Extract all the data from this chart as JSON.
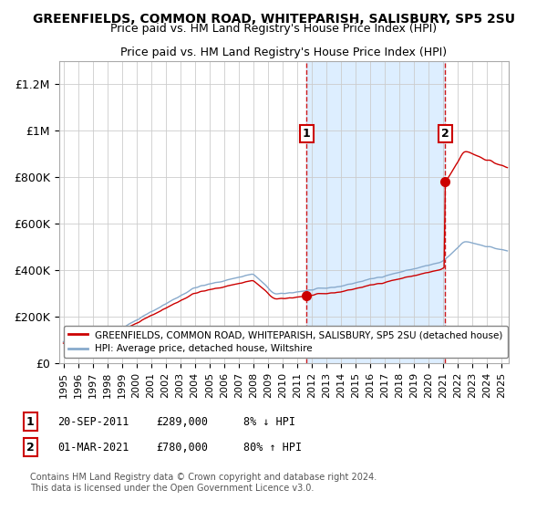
{
  "title": "GREENFIELDS, COMMON ROAD, WHITEPARISH, SALISBURY, SP5 2SU",
  "subtitle": "Price paid vs. HM Land Registry's House Price Index (HPI)",
  "ylabel_ticks": [
    "£0",
    "£200K",
    "£400K",
    "£600K",
    "£800K",
    "£1M",
    "£1.2M"
  ],
  "ylabel_values": [
    0,
    200000,
    400000,
    600000,
    800000,
    1000000,
    1200000
  ],
  "ylim": [
    0,
    1300000
  ],
  "xlim_start": 1994.7,
  "xlim_end": 2025.5,
  "sale1_year": 2011,
  "sale1_month": 9,
  "sale1_y": 289000,
  "sale2_year": 2021,
  "sale2_month": 3,
  "sale2_y": 780000,
  "line_color_property": "#cc0000",
  "line_color_hpi": "#88aacc",
  "shade_color": "#ddeeff",
  "legend_label_property": "GREENFIELDS, COMMON ROAD, WHITEPARISH, SALISBURY, SP5 2SU (detached house)",
  "legend_label_hpi": "HPI: Average price, detached house, Wiltshire",
  "footer": "Contains HM Land Registry data © Crown copyright and database right 2024.\nThis data is licensed under the Open Government Licence v3.0.",
  "background_color": "#ffffff",
  "grid_color": "#cccccc"
}
